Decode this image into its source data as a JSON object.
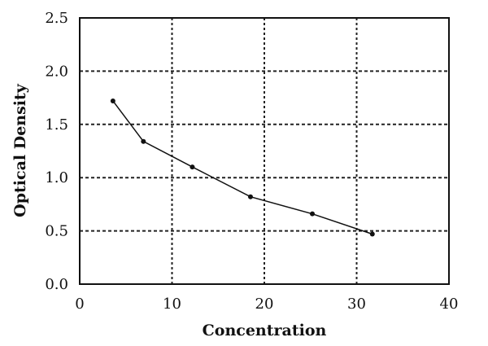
{
  "chart_data": {
    "type": "line",
    "title": "",
    "xlabel": "Concentration",
    "ylabel": "Optical Density",
    "xlim": [
      0,
      40
    ],
    "ylim": [
      0,
      2.5
    ],
    "x_ticks": [
      "0",
      "10",
      "20",
      "30",
      "40"
    ],
    "y_ticks": [
      "0.0",
      "0.5",
      "1.0",
      "1.5",
      "2.0",
      "2.5"
    ],
    "grid": "dashed major gridlines on both axes",
    "legend": "none",
    "series": [
      {
        "x": [
          3.6,
          6.9,
          12.2,
          18.5,
          25.2,
          31.7
        ],
        "y": [
          1.72,
          1.34,
          1.1,
          0.82,
          0.66,
          0.47
        ]
      }
    ],
    "colors": {
      "line": "#111111",
      "marker": "#111111",
      "grid": "#222222",
      "axis": "#111111"
    }
  }
}
